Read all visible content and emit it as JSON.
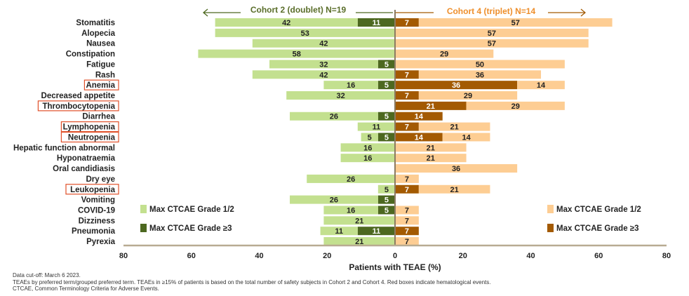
{
  "chart_data": {
    "type": "bar",
    "orientation": "horizontal-butterfly",
    "xlabel": "Patients with TEAE (%)",
    "xlim": [
      -80,
      80
    ],
    "x_ticks": [
      "80",
      "60",
      "40",
      "20",
      "0",
      "20",
      "40",
      "60",
      "80"
    ],
    "grid": false,
    "cohort_left": {
      "title": "Cohort 2 (doublet) N=19",
      "color": "#5a6e2a"
    },
    "cohort_right": {
      "title": "Cohort 4 (triplet) N=14",
      "color": "#ee8f2c"
    },
    "categories": [
      "Stomatitis",
      "Alopecia",
      "Nausea",
      "Constipation",
      "Fatigue",
      "Rash",
      "Anemia",
      "Decreased appetite",
      "Thrombocytopenia",
      "Diarrhea",
      "Lymphopenia",
      "Neutropenia",
      "Hepatic function abnormal",
      "Hyponatraemia",
      "Oral candidiasis",
      "Dry eye",
      "Leukopenia",
      "Vomiting",
      "COVID-19",
      "Dizziness",
      "Pneumonia",
      "Pyrexia"
    ],
    "hematological": [
      "Anemia",
      "Thrombocytopenia",
      "Lymphopenia",
      "Neutropenia",
      "Leukopenia"
    ],
    "series": [
      {
        "name": "Max CTCAE Grade 1/2",
        "cohort": "Cohort 2",
        "color": "#c3e08f",
        "values": [
          42,
          53,
          42,
          58,
          32,
          42,
          16,
          32,
          0,
          26,
          11,
          5,
          16,
          16,
          0,
          26,
          5,
          26,
          16,
          21,
          11,
          21
        ]
      },
      {
        "name": "Max CTCAE Grade ≥3",
        "cohort": "Cohort 2",
        "color": "#4d6820",
        "values": [
          11,
          0,
          0,
          0,
          5,
          0,
          5,
          0,
          0,
          5,
          0,
          5,
          0,
          0,
          0,
          0,
          0,
          5,
          5,
          0,
          11,
          0
        ]
      },
      {
        "name": "Max CTCAE Grade ≥3",
        "cohort": "Cohort 4",
        "color": "#a35a02",
        "values": [
          7,
          0,
          0,
          0,
          0,
          7,
          36,
          7,
          21,
          14,
          7,
          14,
          0,
          0,
          0,
          0,
          7,
          0,
          0,
          0,
          7,
          0
        ]
      },
      {
        "name": "Max CTCAE Grade 1/2",
        "cohort": "Cohort 4",
        "color": "#fdcd93",
        "values": [
          57,
          57,
          57,
          29,
          50,
          36,
          14,
          29,
          29,
          0,
          21,
          14,
          21,
          21,
          36,
          7,
          21,
          0,
          7,
          7,
          0,
          7
        ]
      }
    ],
    "legend": {
      "left": [
        "Max CTCAE Grade 1/2",
        "Max CTCAE Grade ≥3"
      ],
      "right": [
        "Max CTCAE Grade 1/2",
        "Max CTCAE Grade ≥3"
      ],
      "placement": "bottom-left and bottom-right"
    }
  },
  "footnotes": [
    "Data cut-off: March 6 2023.",
    "TEAEs by preferred term/grouped preferred term. TEAEs in ≥15% of patients is based on the total number of safety subjects in Cohort 2 and Cohort 4. Red boxes indicate hematological events.",
    "CTCAE, Common Terminology Criteria for Adverse Events."
  ]
}
